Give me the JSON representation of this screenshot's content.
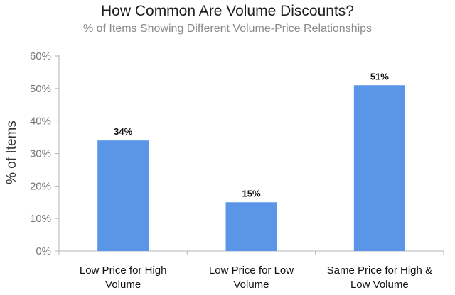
{
  "chart_data": {
    "type": "bar",
    "title": "How Common Are Volume Discounts?",
    "subtitle": "% of Items Showing Different Volume-Price Relationships",
    "ylabel": "% of Items",
    "xlabel": "",
    "categories": [
      [
        "Low Price for High",
        "Volume"
      ],
      [
        "Low Price for Low",
        "Volume"
      ],
      [
        "Same Price for High &",
        "Low Volume"
      ]
    ],
    "values": [
      34,
      15,
      51
    ],
    "data_labels": [
      "34%",
      "15%",
      "51%"
    ],
    "ylim": [
      0,
      60
    ],
    "yticks": [
      0,
      10,
      20,
      30,
      40,
      50,
      60
    ],
    "ytick_labels": [
      "0%",
      "10%",
      "20%",
      "30%",
      "40%",
      "50%",
      "60%"
    ],
    "grid": false,
    "bar_color": "#5b95e8",
    "axis_color": "#b5b5b5"
  }
}
